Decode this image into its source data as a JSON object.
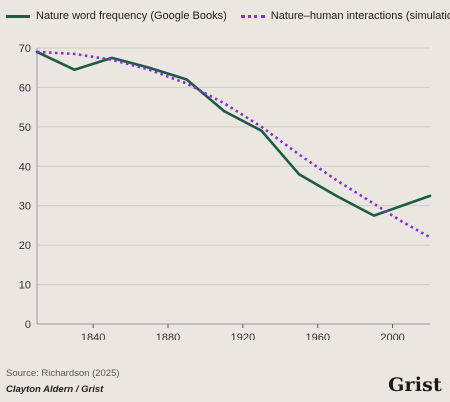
{
  "chart_data": {
    "type": "line",
    "title": "",
    "xlabel": "",
    "ylabel": "",
    "xlim": [
      1810,
      2020
    ],
    "ylim": [
      0,
      70
    ],
    "x_ticks": [
      "1840",
      "1880",
      "1920",
      "1960",
      "2000"
    ],
    "y_ticks": [
      "0",
      "10",
      "20",
      "30",
      "40",
      "50",
      "60",
      "70"
    ],
    "grid": "horizontal",
    "legend_position": "top",
    "series": [
      {
        "name": "Nature word frequency (Google Books)",
        "style": "solid",
        "color": "#1d5b45",
        "points": [
          [
            1810,
            69
          ],
          [
            1830,
            64.5
          ],
          [
            1850,
            67.5
          ],
          [
            1870,
            65
          ],
          [
            1890,
            62
          ],
          [
            1910,
            54
          ],
          [
            1930,
            49
          ],
          [
            1950,
            38
          ],
          [
            1970,
            32.5
          ],
          [
            1990,
            27.5
          ],
          [
            2020,
            32.5
          ]
        ]
      },
      {
        "name": "Nature–human interactions (simulation)",
        "style": "dotted",
        "color": "#8a2be2",
        "points": [
          [
            1810,
            69
          ],
          [
            1830,
            68.5
          ],
          [
            1850,
            67
          ],
          [
            1870,
            64.5
          ],
          [
            1890,
            61
          ],
          [
            1910,
            56
          ],
          [
            1930,
            50
          ],
          [
            1950,
            43
          ],
          [
            1970,
            36.5
          ],
          [
            1990,
            30.5
          ],
          [
            2005,
            26
          ],
          [
            2020,
            22
          ]
        ]
      }
    ]
  },
  "footer": {
    "source": "Source: Richardson (2025)",
    "credit": "Clayton Aldern / Grist",
    "logo": "Grist"
  }
}
